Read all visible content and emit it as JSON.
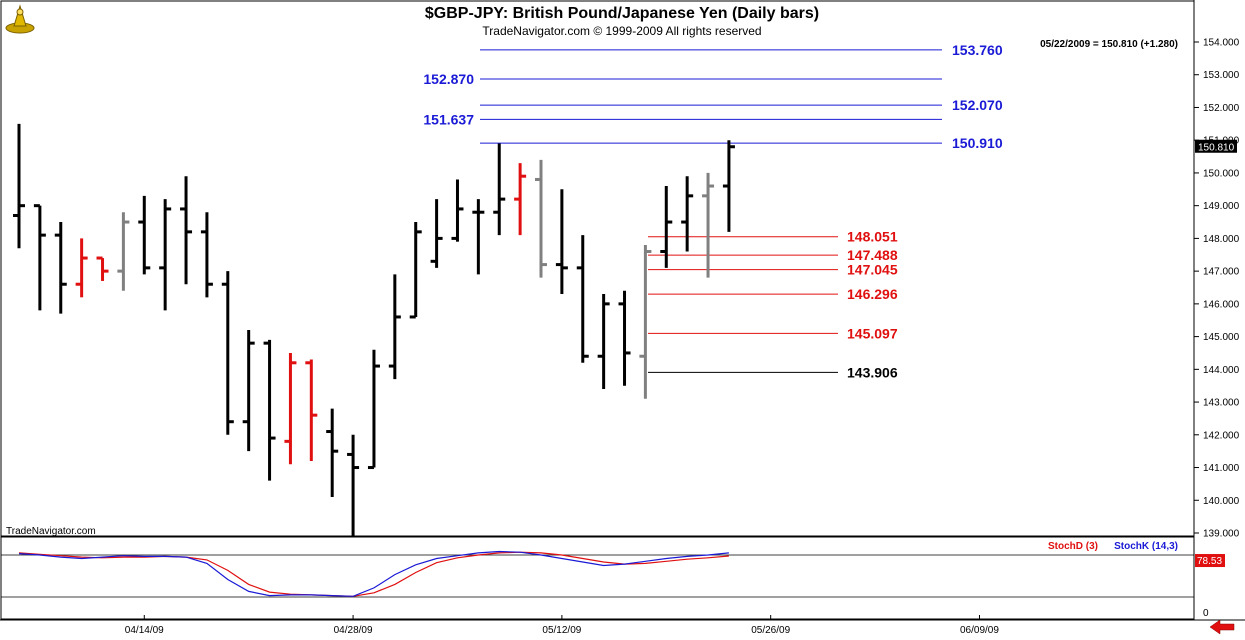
{
  "header": {
    "title": "$GBP-JPY:  British Pound/Japanese Yen  (Daily bars)",
    "subtitle": "TradeNavigator.com © 1999-2009 All rights reserved",
    "quote": "05/22/2009 = 150.810 (+1.280)",
    "watermark": "TradeNavigator.com"
  },
  "chart_data": [
    {
      "type": "ohlc",
      "title": "$GBP-JPY:  British Pound/Japanese Yen  (Daily bars)",
      "ylim": [
        138.9,
        154.2
      ],
      "y_ticks": [
        139.0,
        140.0,
        141.0,
        142.0,
        143.0,
        144.0,
        145.0,
        146.0,
        147.0,
        148.0,
        149.0,
        150.0,
        151.0,
        152.0,
        153.0,
        154.0
      ],
      "x_tick_labels": [
        "04/14/09",
        "04/28/09",
        "05/12/09",
        "05/26/09",
        "06/09/09"
      ],
      "x_tick_bar_index": [
        6,
        16,
        26,
        36,
        46
      ],
      "last_value_label": "150.810",
      "bars": [
        {
          "o": 148.7,
          "h": 151.5,
          "l": 147.7,
          "c": 149.0,
          "color": "black"
        },
        {
          "o": 149.0,
          "h": 149.0,
          "l": 145.8,
          "c": 148.1,
          "color": "black"
        },
        {
          "o": 148.1,
          "h": 148.5,
          "l": 145.7,
          "c": 146.6,
          "color": "black"
        },
        {
          "o": 146.6,
          "h": 148.0,
          "l": 146.2,
          "c": 147.4,
          "color": "red"
        },
        {
          "o": 147.4,
          "h": 147.4,
          "l": 146.7,
          "c": 147.0,
          "color": "red"
        },
        {
          "o": 147.0,
          "h": 148.8,
          "l": 146.4,
          "c": 148.5,
          "color": "gray"
        },
        {
          "o": 148.5,
          "h": 149.3,
          "l": 146.9,
          "c": 147.1,
          "color": "black"
        },
        {
          "o": 147.1,
          "h": 149.2,
          "l": 145.8,
          "c": 148.9,
          "color": "black"
        },
        {
          "o": 148.9,
          "h": 149.9,
          "l": 146.6,
          "c": 148.2,
          "color": "black"
        },
        {
          "o": 148.2,
          "h": 148.8,
          "l": 146.2,
          "c": 146.6,
          "color": "black"
        },
        {
          "o": 146.6,
          "h": 147.0,
          "l": 142.0,
          "c": 142.4,
          "color": "black"
        },
        {
          "o": 142.4,
          "h": 145.2,
          "l": 141.5,
          "c": 144.8,
          "color": "black"
        },
        {
          "o": 144.8,
          "h": 144.9,
          "l": 140.6,
          "c": 141.9,
          "color": "black"
        },
        {
          "o": 141.8,
          "h": 144.5,
          "l": 141.1,
          "c": 144.2,
          "color": "red"
        },
        {
          "o": 144.2,
          "h": 144.3,
          "l": 141.2,
          "c": 142.6,
          "color": "red"
        },
        {
          "o": 142.1,
          "h": 142.8,
          "l": 140.1,
          "c": 141.5,
          "color": "black"
        },
        {
          "o": 141.4,
          "h": 142.0,
          "l": 138.9,
          "c": 141.0,
          "color": "black"
        },
        {
          "o": 141.0,
          "h": 144.6,
          "l": 141.0,
          "c": 144.1,
          "color": "black"
        },
        {
          "o": 144.1,
          "h": 146.9,
          "l": 143.7,
          "c": 145.6,
          "color": "black"
        },
        {
          "o": 145.6,
          "h": 148.5,
          "l": 145.6,
          "c": 148.2,
          "color": "black"
        },
        {
          "o": 147.3,
          "h": 149.2,
          "l": 147.1,
          "c": 148.0,
          "color": "black"
        },
        {
          "o": 148.0,
          "h": 149.8,
          "l": 147.9,
          "c": 148.9,
          "color": "black"
        },
        {
          "o": 148.8,
          "h": 149.2,
          "l": 146.9,
          "c": 148.8,
          "color": "black"
        },
        {
          "o": 148.8,
          "h": 150.9,
          "l": 148.1,
          "c": 149.2,
          "color": "black"
        },
        {
          "o": 149.2,
          "h": 150.3,
          "l": 148.1,
          "c": 149.9,
          "color": "red"
        },
        {
          "o": 149.8,
          "h": 150.4,
          "l": 146.8,
          "c": 147.2,
          "color": "gray"
        },
        {
          "o": 147.2,
          "h": 149.5,
          "l": 146.3,
          "c": 147.1,
          "color": "black"
        },
        {
          "o": 147.1,
          "h": 148.1,
          "l": 144.2,
          "c": 144.4,
          "color": "black"
        },
        {
          "o": 144.4,
          "h": 146.3,
          "l": 143.4,
          "c": 146.0,
          "color": "black"
        },
        {
          "o": 146.0,
          "h": 146.4,
          "l": 143.5,
          "c": 144.5,
          "color": "black"
        },
        {
          "o": 144.4,
          "h": 147.8,
          "l": 143.1,
          "c": 147.6,
          "color": "gray"
        },
        {
          "o": 147.6,
          "h": 149.6,
          "l": 147.1,
          "c": 148.5,
          "color": "black"
        },
        {
          "o": 148.5,
          "h": 149.9,
          "l": 147.6,
          "c": 149.3,
          "color": "black"
        },
        {
          "o": 149.3,
          "h": 150.0,
          "l": 146.8,
          "c": 149.6,
          "color": "gray"
        },
        {
          "o": 149.6,
          "h": 151.0,
          "l": 148.2,
          "c": 150.8,
          "color": "black"
        }
      ],
      "fibonacci_levels": [
        {
          "value": 153.76,
          "label": "153.760",
          "color": "#1a1ad6",
          "label_side": "right"
        },
        {
          "value": 152.87,
          "label": "152.870",
          "color": "#1a1ad6",
          "label_side": "left"
        },
        {
          "value": 152.07,
          "label": "152.070",
          "color": "#1a1ad6",
          "label_side": "right"
        },
        {
          "value": 151.637,
          "label": "151.637",
          "color": "#1a1ad6",
          "label_side": "left"
        },
        {
          "value": 150.91,
          "label": "150.910",
          "color": "#1a1ad6",
          "label_side": "right"
        },
        {
          "value": 148.051,
          "label": "148.051",
          "color": "#e01010",
          "label_side": "right"
        },
        {
          "value": 147.488,
          "label": "147.488",
          "color": "#e01010",
          "label_side": "right"
        },
        {
          "value": 147.045,
          "label": "147.045",
          "color": "#e01010",
          "label_side": "right"
        },
        {
          "value": 146.296,
          "label": "146.296",
          "color": "#e01010",
          "label_side": "right"
        },
        {
          "value": 145.097,
          "label": "145.097",
          "color": "#e01010",
          "label_side": "right"
        },
        {
          "value": 143.906,
          "label": "143.906",
          "color": "#000000",
          "label_side": "right"
        }
      ]
    },
    {
      "type": "line",
      "ylim": [
        0,
        100
      ],
      "y_ticks": [
        0
      ],
      "reference_lines": [
        80,
        20
      ],
      "series": [
        {
          "name": "StochD (3)",
          "color": "#e01010",
          "values": [
            83,
            81,
            79,
            77,
            76,
            77,
            77,
            78,
            77,
            73,
            58,
            38,
            27,
            24,
            23,
            22,
            21,
            26,
            38,
            55,
            69,
            76,
            80,
            83,
            84,
            83,
            80,
            75,
            70,
            67,
            68,
            71,
            74,
            76,
            78.53
          ]
        },
        {
          "name": "StochK (14,3)",
          "color": "#1a1ad6",
          "values": [
            82,
            80,
            77,
            75,
            77,
            79,
            78,
            78,
            77,
            68,
            45,
            28,
            22,
            23,
            23,
            22,
            21,
            33,
            52,
            66,
            75,
            79,
            83,
            85,
            84,
            80,
            75,
            70,
            65,
            67,
            71,
            75,
            78,
            80,
            83
          ]
        }
      ],
      "last_value_labels": [
        "78.53"
      ]
    }
  ]
}
